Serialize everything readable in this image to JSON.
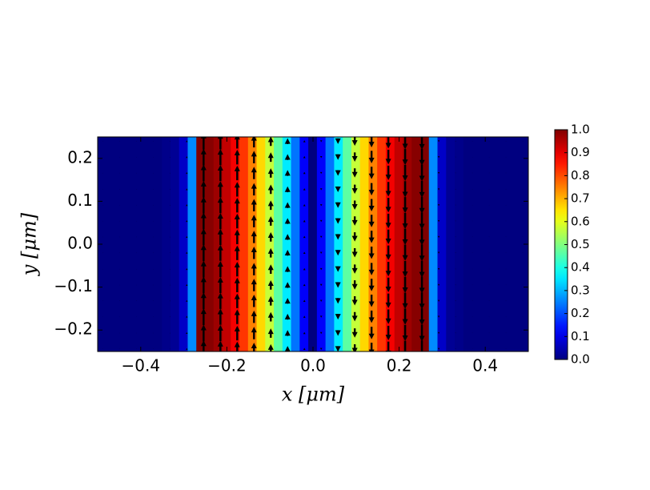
{
  "chart_data": {
    "type": "heatmap-quiver",
    "x_label": "x [μm]",
    "y_label": "y [μm]",
    "xlim": [
      -0.5,
      0.5
    ],
    "ylim": [
      -0.25,
      0.25
    ],
    "xticks": [
      {
        "value": -0.4,
        "label": "−0.4"
      },
      {
        "value": -0.2,
        "label": "−0.2"
      },
      {
        "value": 0,
        "label": "0.0"
      },
      0.2,
      0.4
    ],
    "yticks": [
      {
        "value": -0.2,
        "label": "−0.2"
      },
      {
        "value": -0.1,
        "label": "−0.1"
      },
      {
        "value": 0,
        "label": "0.0"
      },
      0.1,
      0.2
    ],
    "colormap": "jet",
    "x": [
      -0.5,
      -0.48,
      -0.46,
      -0.44,
      -0.42,
      -0.4,
      -0.38,
      -0.36,
      -0.34,
      -0.32,
      -0.3,
      -0.28,
      -0.26,
      -0.24,
      -0.22,
      -0.2,
      -0.18,
      -0.16,
      -0.14,
      -0.12,
      -0.1,
      -0.08,
      -0.06,
      -0.04,
      -0.02,
      0,
      0.02,
      0.04,
      0.06,
      0.08,
      0.1,
      0.12,
      0.14,
      0.16,
      0.18,
      0.2,
      0.22,
      0.24,
      0.26,
      0.28,
      0.3,
      0.32,
      0.34,
      0.36,
      0.38,
      0.4,
      0.42,
      0.44,
      0.46,
      0.48,
      0.5
    ],
    "values": [
      0,
      0,
      0,
      0,
      0,
      0,
      0,
      0,
      0.01,
      0.02,
      0.07,
      0.26,
      1.0,
      0.993,
      0.971,
      0.935,
      0.885,
      0.823,
      0.749,
      0.663,
      0.568,
      0.465,
      0.355,
      0.239,
      0.121,
      0.0,
      0.121,
      0.239,
      0.355,
      0.465,
      0.568,
      0.663,
      0.749,
      0.823,
      0.885,
      0.935,
      0.971,
      0.993,
      1.0,
      0.26,
      0.07,
      0.02,
      0.01,
      0,
      0,
      0,
      0,
      0,
      0,
      0,
      0
    ],
    "quiver": {
      "x": [
        -0.488,
        -0.449,
        -0.41,
        -0.371,
        -0.332,
        -0.293,
        -0.254,
        -0.215,
        -0.176,
        -0.137,
        -0.098,
        -0.059,
        -0.02,
        0.019,
        0.058,
        0.097,
        0.136,
        0.175,
        0.214,
        0.253,
        0.292,
        0.331,
        0.37,
        0.409,
        0.448,
        0.487
      ],
      "y": [
        0.24,
        0.203,
        0.166,
        0.128,
        0.091,
        0.054,
        0.017,
        -0.02,
        -0.058,
        -0.095,
        -0.132,
        -0.169,
        -0.207,
        -0.244
      ],
      "v": [
        0.02,
        0.02,
        0.02,
        0.02,
        0.03,
        0.1,
        1.0,
        0.96,
        0.87,
        0.74,
        0.56,
        0.35,
        0.12,
        -0.11,
        -0.34,
        -0.55,
        -0.74,
        -0.87,
        -0.96,
        -1.0,
        -0.1,
        -0.03,
        -0.02,
        -0.02,
        -0.02,
        -0.02
      ]
    },
    "colorbar": {
      "lim": [
        0,
        1
      ],
      "ticks": [
        {
          "value": 0,
          "label": "0.0"
        },
        0.1,
        0.2,
        0.3,
        0.4,
        0.5,
        0.6,
        0.7,
        0.8,
        0.9,
        {
          "value": 1,
          "label": "1.0"
        }
      ]
    }
  }
}
